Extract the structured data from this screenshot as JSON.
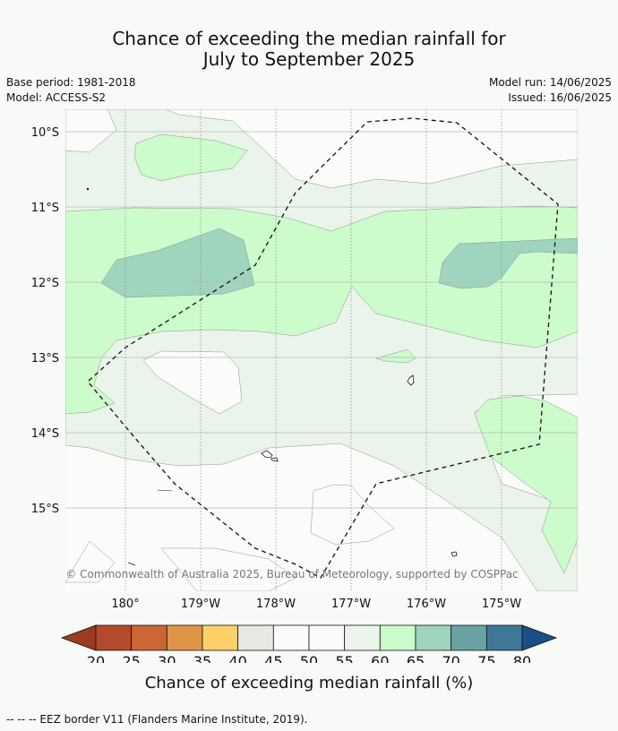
{
  "title": {
    "line1": "Chance of exceeding the median rainfall for",
    "line2": "July to September 2025"
  },
  "meta": {
    "base_period": "Base period: 1981-2018",
    "model": "Model: ACCESS-S2",
    "model_run": "Model run: 14/06/2025",
    "issued": "Issued: 16/06/2025"
  },
  "map": {
    "lat_labels": [
      "10°S",
      "11°S",
      "12°S",
      "13°S",
      "14°S",
      "15°S"
    ],
    "lon_labels": [
      "180°",
      "179°W",
      "178°W",
      "177°W",
      "176°W",
      "175°W"
    ],
    "copyright": "© Commonwealth of Australia 2025, Bureau of Meteorology, supported by COSPPac"
  },
  "colorbar": {
    "ticks": [
      "20",
      "25",
      "30",
      "35",
      "40",
      "45",
      "50",
      "55",
      "60",
      "65",
      "70",
      "75",
      "80"
    ],
    "label": "Chance of exceeding median rainfall (%)",
    "colors": [
      "#b34a2a",
      "#cc6633",
      "#e09448",
      "#fdd06a",
      "#e8e8e4",
      "#fbfcfa",
      "#fbfcfa",
      "#eaf4ea",
      "#ccfccc",
      "#9fd4be",
      "#6aa3a4",
      "#3f7797"
    ],
    "under_color": "#9b3c22",
    "over_color": "#1a4e87"
  },
  "legend": {
    "eez": "--  --  -- EEZ border V11 (Flanders Marine Institute, 2019)."
  }
}
